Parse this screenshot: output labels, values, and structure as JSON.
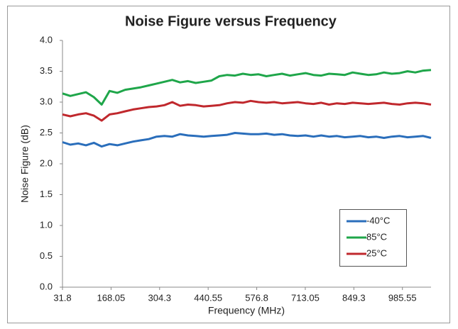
{
  "chart_data": {
    "type": "line",
    "title": "Noise Figure versus Frequency",
    "x_label": "Frequency (MHz)",
    "y_label": "Noise Figure (dB)",
    "x": [
      31.8,
      53.8,
      75.8,
      97.8,
      119.8,
      141.8,
      163.8,
      185.8,
      207.8,
      229.8,
      251.8,
      273.8,
      295.8,
      317.8,
      339.8,
      361.8,
      383.8,
      405.8,
      427.8,
      449.8,
      471.8,
      493.8,
      515.8,
      537.8,
      559.8,
      581.8,
      603.8,
      625.8,
      647.8,
      669.8,
      691.8,
      713.8,
      735.8,
      757.8,
      779.8,
      801.8,
      823.8,
      845.8,
      867.8,
      889.8,
      911.8,
      933.8,
      955.8,
      977.8,
      999.8,
      1021.8,
      1043.8,
      1065.8
    ],
    "series": [
      {
        "name": "-40°C",
        "color": "#2a6ebb",
        "values": [
          2.35,
          2.31,
          2.33,
          2.3,
          2.34,
          2.28,
          2.32,
          2.3,
          2.33,
          2.36,
          2.38,
          2.4,
          2.44,
          2.45,
          2.44,
          2.48,
          2.46,
          2.45,
          2.44,
          2.45,
          2.46,
          2.47,
          2.5,
          2.49,
          2.48,
          2.48,
          2.49,
          2.47,
          2.48,
          2.46,
          2.45,
          2.46,
          2.44,
          2.46,
          2.44,
          2.45,
          2.43,
          2.44,
          2.45,
          2.43,
          2.44,
          2.42,
          2.44,
          2.45,
          2.43,
          2.44,
          2.45,
          2.42
        ]
      },
      {
        "name": "85°C",
        "color": "#1fa64a",
        "values": [
          3.14,
          3.1,
          3.13,
          3.16,
          3.08,
          2.96,
          3.18,
          3.15,
          3.2,
          3.22,
          3.24,
          3.27,
          3.3,
          3.33,
          3.36,
          3.32,
          3.34,
          3.31,
          3.33,
          3.35,
          3.42,
          3.44,
          3.43,
          3.46,
          3.44,
          3.45,
          3.42,
          3.44,
          3.46,
          3.43,
          3.45,
          3.47,
          3.44,
          3.43,
          3.46,
          3.45,
          3.44,
          3.48,
          3.46,
          3.44,
          3.45,
          3.48,
          3.46,
          3.47,
          3.5,
          3.48,
          3.51,
          3.52
        ]
      },
      {
        "name": "25°C",
        "color": "#c0282d",
        "values": [
          2.8,
          2.77,
          2.8,
          2.82,
          2.78,
          2.7,
          2.8,
          2.82,
          2.85,
          2.88,
          2.9,
          2.92,
          2.93,
          2.95,
          3.0,
          2.94,
          2.96,
          2.95,
          2.93,
          2.94,
          2.95,
          2.98,
          3.0,
          2.99,
          3.02,
          3.0,
          2.99,
          3.0,
          2.98,
          2.99,
          3.0,
          2.98,
          2.97,
          2.99,
          2.96,
          2.98,
          2.97,
          2.99,
          2.98,
          2.97,
          2.98,
          2.99,
          2.97,
          2.96,
          2.98,
          2.99,
          2.98,
          2.96
        ]
      }
    ],
    "xlim": [
      31.8,
      1065.8
    ],
    "xticks": [
      31.8,
      168.05,
      304.3,
      440.55,
      576.8,
      713.05,
      849.3,
      985.55
    ],
    "ylim": [
      0,
      4
    ],
    "yticks": [
      {
        "value": 0,
        "label": "0.0"
      },
      {
        "value": 0.5,
        "label": "0.5"
      },
      {
        "value": 1,
        "label": "1.0"
      },
      {
        "value": 1.5,
        "label": "1.5"
      },
      {
        "value": 2,
        "label": "2.0"
      },
      {
        "value": 2.5,
        "label": "2.5"
      },
      {
        "value": 3,
        "label": "3.0"
      },
      {
        "value": 3.5,
        "label": "3.5"
      },
      {
        "value": 4,
        "label": "4.0"
      }
    ],
    "grid": false,
    "legend": "lower right"
  }
}
